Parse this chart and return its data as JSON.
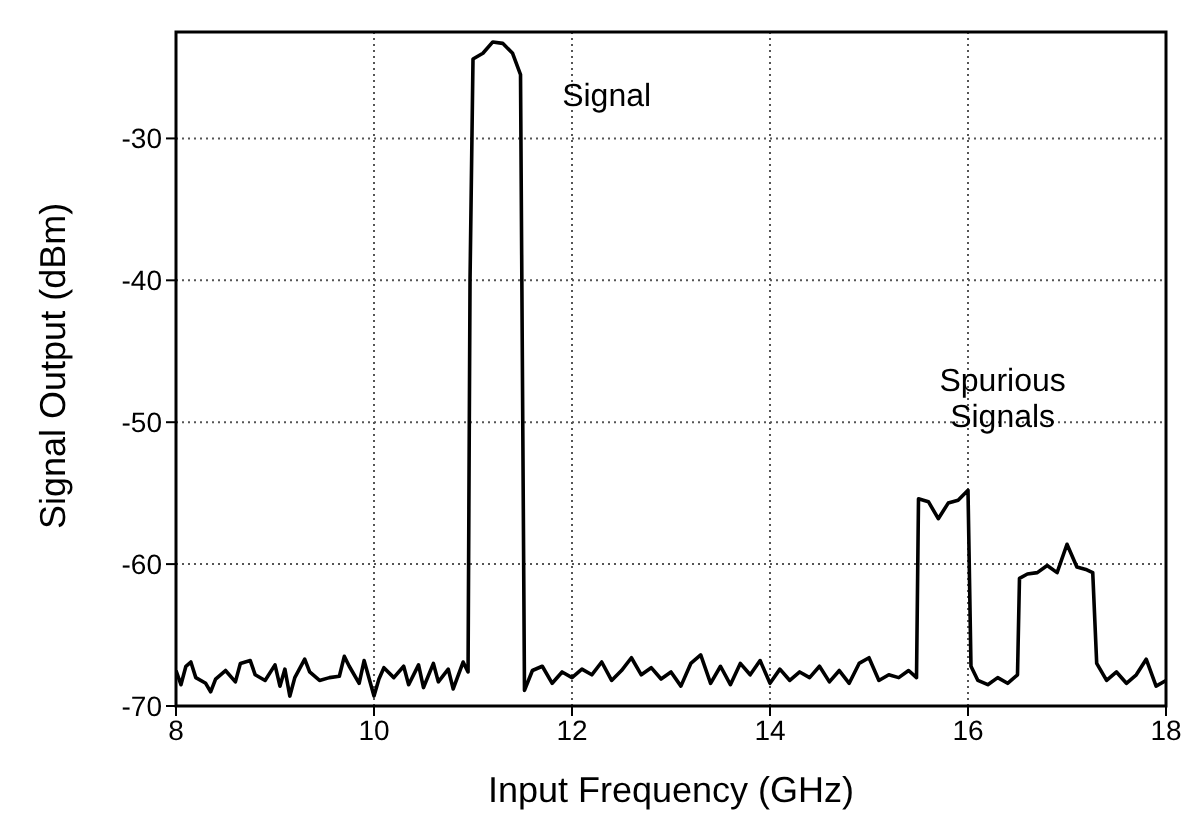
{
  "chart_data": {
    "type": "line",
    "xlabel": "Input Frequency (GHz)",
    "ylabel": "Signal Output (dBm)",
    "xlim": [
      8,
      18
    ],
    "xticks": [
      8,
      10,
      12,
      14,
      16,
      18
    ],
    "ylim": [
      -70,
      -22.5
    ],
    "yticks": [
      -70,
      -60,
      -50,
      -40,
      -30
    ],
    "grid": true,
    "marker": "none",
    "line_style": "solid",
    "annotations": [
      "Signal",
      "Spurious Signals"
    ],
    "series": [
      {
        "color": "#000000",
        "x": [
          8.0,
          8.05,
          8.1,
          8.15,
          8.2,
          8.3,
          8.35,
          8.4,
          8.5,
          8.6,
          8.65,
          8.75,
          8.8,
          8.9,
          9.0,
          9.05,
          9.1,
          9.15,
          9.2,
          9.3,
          9.35,
          9.45,
          9.55,
          9.65,
          9.7,
          9.75,
          9.85,
          9.9,
          10.0,
          10.05,
          10.1,
          10.2,
          10.3,
          10.35,
          10.45,
          10.5,
          10.6,
          10.65,
          10.75,
          10.8,
          10.9,
          10.95,
          10.97,
          11.0,
          11.1,
          11.2,
          11.3,
          11.4,
          11.48,
          11.52,
          11.6,
          11.7,
          11.8,
          11.9,
          12.0,
          12.1,
          12.2,
          12.3,
          12.4,
          12.5,
          12.6,
          12.7,
          12.8,
          12.9,
          13.0,
          13.1,
          13.2,
          13.3,
          13.4,
          13.5,
          13.6,
          13.7,
          13.8,
          13.9,
          14.0,
          14.1,
          14.2,
          14.3,
          14.4,
          14.5,
          14.6,
          14.7,
          14.8,
          14.9,
          15.0,
          15.1,
          15.2,
          15.3,
          15.4,
          15.48,
          15.5,
          15.6,
          15.7,
          15.8,
          15.9,
          16.0,
          16.03,
          16.1,
          16.2,
          16.3,
          16.4,
          16.5,
          16.52,
          16.6,
          16.7,
          16.8,
          16.9,
          17.0,
          17.1,
          17.2,
          17.26,
          17.3,
          17.4,
          17.5,
          17.6,
          17.7,
          17.8,
          17.9,
          18.0
        ],
        "values": [
          -67.5,
          -68.5,
          -67.2,
          -66.9,
          -68.0,
          -68.4,
          -69.0,
          -68.1,
          -67.5,
          -68.3,
          -67.0,
          -66.8,
          -67.8,
          -68.2,
          -67.1,
          -68.6,
          -67.4,
          -69.3,
          -68.0,
          -66.7,
          -67.6,
          -68.2,
          -68.0,
          -67.9,
          -66.5,
          -67.2,
          -68.4,
          -66.8,
          -69.3,
          -68.1,
          -67.3,
          -68.0,
          -67.2,
          -68.5,
          -67.1,
          -68.7,
          -67.0,
          -68.3,
          -67.4,
          -68.8,
          -66.9,
          -67.6,
          -40,
          -24.4,
          -24.0,
          -23.2,
          -23.3,
          -24.0,
          -25.5,
          -68.9,
          -67.5,
          -67.2,
          -68.4,
          -67.6,
          -68.0,
          -67.4,
          -67.8,
          -66.9,
          -68.2,
          -67.5,
          -66.6,
          -67.8,
          -67.3,
          -68.1,
          -67.6,
          -68.6,
          -67.0,
          -66.4,
          -68.4,
          -67.2,
          -68.5,
          -67.0,
          -67.8,
          -66.8,
          -68.4,
          -67.4,
          -68.2,
          -67.6,
          -68.0,
          -67.2,
          -68.3,
          -67.5,
          -68.4,
          -67.0,
          -66.6,
          -68.2,
          -67.8,
          -68.0,
          -67.5,
          -68.0,
          -55.4,
          -55.6,
          -56.8,
          -55.7,
          -55.5,
          -54.8,
          -67.2,
          -68.2,
          -68.5,
          -68.0,
          -68.4,
          -67.8,
          -61.0,
          -60.7,
          -60.6,
          -60.1,
          -60.6,
          -58.6,
          -60.2,
          -60.4,
          -60.6,
          -67.0,
          -68.2,
          -67.6,
          -68.4,
          -67.8,
          -66.7,
          -68.6,
          -68.2
        ]
      }
    ]
  }
}
